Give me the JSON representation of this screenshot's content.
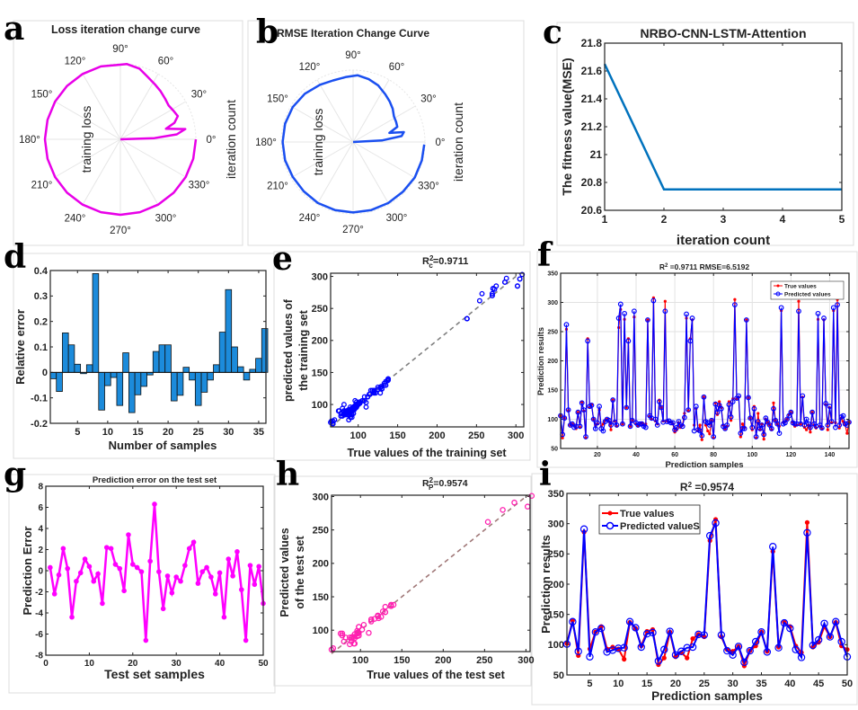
{
  "panel_letters": [
    "a",
    "b",
    "c",
    "d",
    "e",
    "f",
    "g",
    "h",
    "i"
  ],
  "chart_data": [
    {
      "type": "line",
      "coordinate_system": "polar",
      "title": "Loss iteration change curve",
      "radial_label": "training loss",
      "angular_label": "iteration count",
      "theta_ticks": [
        "0°",
        "30°",
        "60°",
        "90°",
        "120°",
        "150°",
        "180°",
        "210°",
        "240°",
        "270°",
        "300°",
        "330°"
      ],
      "color": "#E800E8",
      "points_theta_r": [
        [
          0,
          0
        ],
        [
          2,
          0.45
        ],
        [
          5,
          0.75
        ],
        [
          9,
          0.87
        ],
        [
          13,
          0.62
        ],
        [
          17,
          0.75
        ],
        [
          22,
          0.82
        ],
        [
          28,
          0.8
        ],
        [
          35,
          0.78
        ],
        [
          42,
          0.8
        ],
        [
          50,
          0.83
        ],
        [
          58,
          0.86
        ],
        [
          66,
          0.9
        ],
        [
          75,
          0.97
        ],
        [
          85,
          1.0
        ],
        [
          105,
          1.0
        ],
        [
          120,
          1.0
        ],
        [
          135,
          1.0
        ],
        [
          150,
          1.0
        ],
        [
          165,
          1.0
        ],
        [
          180,
          1.0
        ],
        [
          195,
          1.0
        ],
        [
          210,
          1.0
        ],
        [
          225,
          1.0
        ],
        [
          240,
          1.0
        ],
        [
          255,
          1.0
        ],
        [
          270,
          1.0
        ],
        [
          285,
          1.0
        ],
        [
          300,
          1.0
        ],
        [
          315,
          1.0
        ],
        [
          330,
          1.0
        ],
        [
          345,
          1.0
        ],
        [
          360,
          1.0
        ]
      ]
    },
    {
      "type": "line",
      "coordinate_system": "polar",
      "title": "RMSE Iteration Change Curve",
      "radial_label": "training loss",
      "angular_label": "iteration count",
      "theta_ticks": [
        "0°",
        "30°",
        "60°",
        "90°",
        "120°",
        "150°",
        "180°",
        "210°",
        "240°",
        "270°",
        "300°",
        "330°"
      ],
      "color": "#1A4FF0",
      "points_theta_r": [
        [
          0,
          0
        ],
        [
          3,
          0.4
        ],
        [
          7,
          0.68
        ],
        [
          11,
          0.72
        ],
        [
          14,
          0.52
        ],
        [
          19,
          0.65
        ],
        [
          25,
          0.66
        ],
        [
          32,
          0.67
        ],
        [
          40,
          0.72
        ],
        [
          48,
          0.76
        ],
        [
          56,
          0.8
        ],
        [
          66,
          0.86
        ],
        [
          76,
          0.9
        ],
        [
          86,
          0.93
        ],
        [
          96,
          0.91
        ],
        [
          108,
          0.9
        ],
        [
          120,
          0.92
        ],
        [
          135,
          0.95
        ],
        [
          150,
          0.97
        ],
        [
          165,
          0.98
        ],
        [
          180,
          0.98
        ],
        [
          195,
          0.98
        ],
        [
          210,
          0.97
        ],
        [
          225,
          0.97
        ],
        [
          240,
          0.98
        ],
        [
          255,
          0.98
        ],
        [
          270,
          0.98
        ],
        [
          285,
          0.98
        ],
        [
          300,
          0.98
        ],
        [
          315,
          0.98
        ],
        [
          330,
          0.99
        ],
        [
          345,
          0.99
        ],
        [
          358,
          0.99
        ]
      ]
    },
    {
      "type": "line",
      "title": "NRBO-CNN-LSTM-Attention",
      "xlabel": "iteration count",
      "ylabel": "The fitness value(MSE)",
      "x": [
        1,
        2,
        3,
        4,
        5
      ],
      "y": [
        21.65,
        20.75,
        20.75,
        20.75,
        20.75
      ],
      "xlim": [
        1,
        5
      ],
      "ylim": [
        20.6,
        21.8
      ],
      "xticks": [
        1,
        2,
        3,
        4,
        5
      ],
      "yticks": [
        20.6,
        20.8,
        21,
        21.2,
        21.4,
        21.6,
        21.8
      ],
      "grid": false,
      "color": "#0072BD"
    },
    {
      "type": "bar",
      "xlabel": "Number of samples",
      "ylabel": "Relative error",
      "x": [
        1,
        2,
        3,
        4,
        5,
        6,
        7,
        8,
        9,
        10,
        11,
        12,
        13,
        14,
        15,
        16,
        17,
        18,
        19,
        20,
        21,
        22,
        23,
        24,
        25,
        26,
        27,
        28,
        29,
        30,
        31,
        32,
        33,
        34,
        35,
        36
      ],
      "values": [
        -0.025,
        -0.075,
        0.155,
        0.108,
        0.032,
        -0.005,
        0.03,
        0.388,
        -0.148,
        -0.052,
        -0.02,
        -0.13,
        0.077,
        -0.158,
        -0.088,
        -0.055,
        -0.01,
        0.082,
        0.108,
        0.108,
        -0.112,
        -0.09,
        0.02,
        -0.03,
        -0.13,
        -0.078,
        -0.03,
        0.03,
        0.158,
        0.325,
        0.1,
        0.022,
        -0.03,
        0.012,
        0.055,
        0.172
      ],
      "xlim": [
        0.5,
        36.2
      ],
      "ylim": [
        -0.2,
        0.4
      ],
      "xticks": [
        5,
        10,
        15,
        20,
        25,
        30,
        35
      ],
      "yticks": [
        -0.2,
        -0.1,
        0,
        0.1,
        0.2,
        0.3,
        0.4
      ],
      "grid": false,
      "color": "#1C8BDB"
    },
    {
      "type": "scatter",
      "title": {
        "base": "R",
        "sup": "2",
        "sub": "c",
        "value": "=0.9711"
      },
      "xlabel": "True values of the training set",
      "ylabel_lines": [
        "predicted values of",
        "the training set"
      ],
      "source": "training set (true, predicted) pairs of panel f",
      "xlim": [
        65,
        310
      ],
      "ylim": [
        65,
        305
      ],
      "xticks": [
        100,
        150,
        200,
        250,
        300
      ],
      "yticks": [
        100,
        150,
        200,
        250,
        300
      ],
      "reference_line": "y = x (dashed)",
      "color": "#0000FF"
    },
    {
      "type": "line",
      "title": {
        "base": "R",
        "sup": "2",
        "value": " =0.9711 RMSE=6.5192"
      },
      "xlabel": "Prediction samples",
      "ylabel": "Prediction results",
      "xlim": [
        1,
        150
      ],
      "ylim": [
        50,
        350
      ],
      "xticks": [
        20,
        40,
        60,
        80,
        100,
        120,
        140
      ],
      "yticks": [
        50,
        100,
        150,
        200,
        250,
        300,
        350
      ],
      "grid": true,
      "legend": "top-right",
      "series": [
        {
          "name": "True values",
          "color": "#FF0000",
          "marker": "filled-dot",
          "values": [
            106,
            68,
            102,
            254,
            115,
            90,
            92,
            90,
            84,
            112,
            86,
            129,
            114,
            68,
            238,
            120,
            125,
            100,
            90,
            92,
            116,
            88,
            92,
            98,
            100,
            96,
            82,
            133,
            97,
            88,
            257,
            288,
            92,
            271,
            120,
            238,
            88,
            98,
            275,
            92,
            88,
            92,
            94,
            90,
            92,
            270,
            105,
            100,
            308,
            97,
            92,
            133,
            120,
            97,
            302,
            97,
            95,
            96,
            92,
            78,
            82,
            94,
            86,
            90,
            110,
            273,
            115,
            238,
            270,
            90,
            118,
            80,
            90,
            65,
            138,
            90,
            80,
            75,
            98,
            68,
            128,
            108,
            130,
            120,
            90,
            84,
            88,
            130,
            98,
            135,
            305,
            135,
            138,
            70,
            92,
            86,
            270,
            137,
            102,
            82,
            122,
            68,
            110,
            82,
            92,
            66,
            100,
            95,
            90,
            82,
            128,
            98,
            92,
            88,
            286,
            95,
            96,
            100,
            108,
            112,
            95,
            88,
            90,
            302,
            92,
            138,
            86,
            82,
            90,
            78,
            112,
            90,
            85,
            271,
            88,
            84,
            270,
            125,
            82,
            120,
            94,
            286,
            94,
            305,
            85,
            102,
            96,
            90,
            76,
            95
          ]
        },
        {
          "name": "Predicted values",
          "color": "#0000FF",
          "marker": "hollow-circle",
          "values": [
            106,
            74,
            102,
            262,
            116,
            90,
            92,
            86,
            88,
            112,
            88,
            128,
            116,
            70,
            234,
            122,
            124,
            100,
            84,
            94,
            122,
            84,
            80,
            96,
            100,
            98,
            90,
            133,
            95,
            90,
            273,
            297,
            92,
            281,
            120,
            234,
            88,
            98,
            285,
            94,
            90,
            92,
            92,
            88,
            86,
            270,
            106,
            102,
            303,
            100,
            90,
            130,
            120,
            95,
            285,
            96,
            97,
            94,
            94,
            82,
            86,
            96,
            90,
            88,
            103,
            280,
            116,
            234,
            273,
            80,
            122,
            82,
            80,
            72,
            138,
            96,
            94,
            90,
            98,
            70,
            126,
            112,
            124,
            118,
            88,
            84,
            90,
            125,
            104,
            130,
            296,
            136,
            140,
            76,
            84,
            84,
            270,
            137,
            102,
            86,
            118,
            70,
            96,
            84,
            90,
            74,
            102,
            95,
            90,
            84,
            118,
            98,
            92,
            76,
            291,
            92,
            94,
            100,
            106,
            112,
            94,
            92,
            92,
            285,
            92,
            140,
            90,
            100,
            92,
            86,
            112,
            92,
            88,
            281,
            90,
            85,
            273,
            127,
            90,
            122,
            96,
            291,
            86,
            296,
            90,
            104,
            106,
            92,
            90,
            95
          ]
        }
      ]
    },
    {
      "type": "line",
      "title": "Prediction error on the test set",
      "xlabel": "Test set samples",
      "ylabel": "Prediction Error",
      "x_start": 1,
      "values": [
        0.3,
        -2.2,
        -0.4,
        2.1,
        0.2,
        -4.4,
        -1.0,
        -0.2,
        1.1,
        0.4,
        -1.0,
        -0.3,
        -3.1,
        2.2,
        2.1,
        0.6,
        0.2,
        -1.9,
        3.4,
        0.6,
        0.3,
        -0.1,
        -6.6,
        0.9,
        6.3,
        -0.1,
        -3.6,
        -0.5,
        -2.1,
        -0.6,
        -1.0,
        0.5,
        2.1,
        2.7,
        -1.2,
        -0.1,
        0.3,
        -0.6,
        -2.2,
        -0.2,
        -4.4,
        1.1,
        -0.5,
        1.8,
        -1.8,
        -6.6,
        0.5,
        -1.3,
        0.4,
        -3.1
      ],
      "xlim": [
        0,
        50
      ],
      "ylim": [
        -8,
        8
      ],
      "xticks": [
        0,
        10,
        20,
        30,
        40,
        50
      ],
      "yticks": [
        -8,
        -6,
        -4,
        -2,
        0,
        2,
        4,
        6,
        8
      ],
      "grid": false,
      "color": "#FF00FF"
    },
    {
      "type": "scatter",
      "title": {
        "base": "R",
        "sup": "2",
        "sub": "P",
        "value": "=0.9574"
      },
      "xlabel": "True values of the test set",
      "ylabel_lines": [
        "Predicted values",
        "of the test set"
      ],
      "source": "test set (true, predicted) pairs of panel i",
      "xlim": [
        65,
        305
      ],
      "ylim": [
        68,
        302
      ],
      "xticks": [
        100,
        150,
        200,
        250,
        300
      ],
      "yticks": [
        100,
        150,
        200,
        250,
        300
      ],
      "reference_line": "y = x (dashed)",
      "color": "#FF1FB0",
      "line_color": "#A07878"
    },
    {
      "type": "line",
      "title": {
        "base": "R",
        "sup": "2",
        "value": " =0.9574"
      },
      "xlabel": "Prediction samples",
      "ylabel": "Prediction results",
      "xlim": [
        1,
        50
      ],
      "ylim": [
        50,
        350
      ],
      "xticks": [
        5,
        10,
        15,
        20,
        25,
        30,
        35,
        40,
        45,
        50
      ],
      "yticks": [
        50,
        100,
        150,
        200,
        250,
        300,
        350
      ],
      "grid": false,
      "legend": "top-left",
      "series": [
        {
          "name": "True values",
          "color": "#FF0000",
          "marker": "filled-dot",
          "values": [
            102,
            140,
            82,
            286,
            93,
            121,
            130,
            93,
            96,
            93,
            76,
            137,
            127,
            98,
            122,
            125,
            67,
            78,
            121,
            80,
            87,
            78,
            110,
            117,
            113,
            272,
            307,
            113,
            92,
            89,
            97,
            65,
            90,
            98,
            121,
            89,
            254,
            96,
            137,
            130,
            98,
            87,
            302,
            96,
            104,
            130,
            113,
            137,
            98,
            92
          ]
        },
        {
          "name": "Predicted valueS",
          "color": "#0000FF",
          "marker": "hollow-circle",
          "values": [
            101,
            138,
            89,
            291,
            80,
            121,
            127,
            88,
            91,
            94,
            95,
            138,
            128,
            96,
            118,
            120,
            73,
            92,
            122,
            83,
            89,
            95,
            96,
            117,
            116,
            280,
            301,
            116,
            90,
            83,
            97,
            71,
            90,
            105,
            121,
            88,
            262,
            95,
            136,
            127,
            92,
            79,
            285,
            99,
            108,
            135,
            113,
            138,
            105,
            80
          ]
        }
      ]
    }
  ]
}
